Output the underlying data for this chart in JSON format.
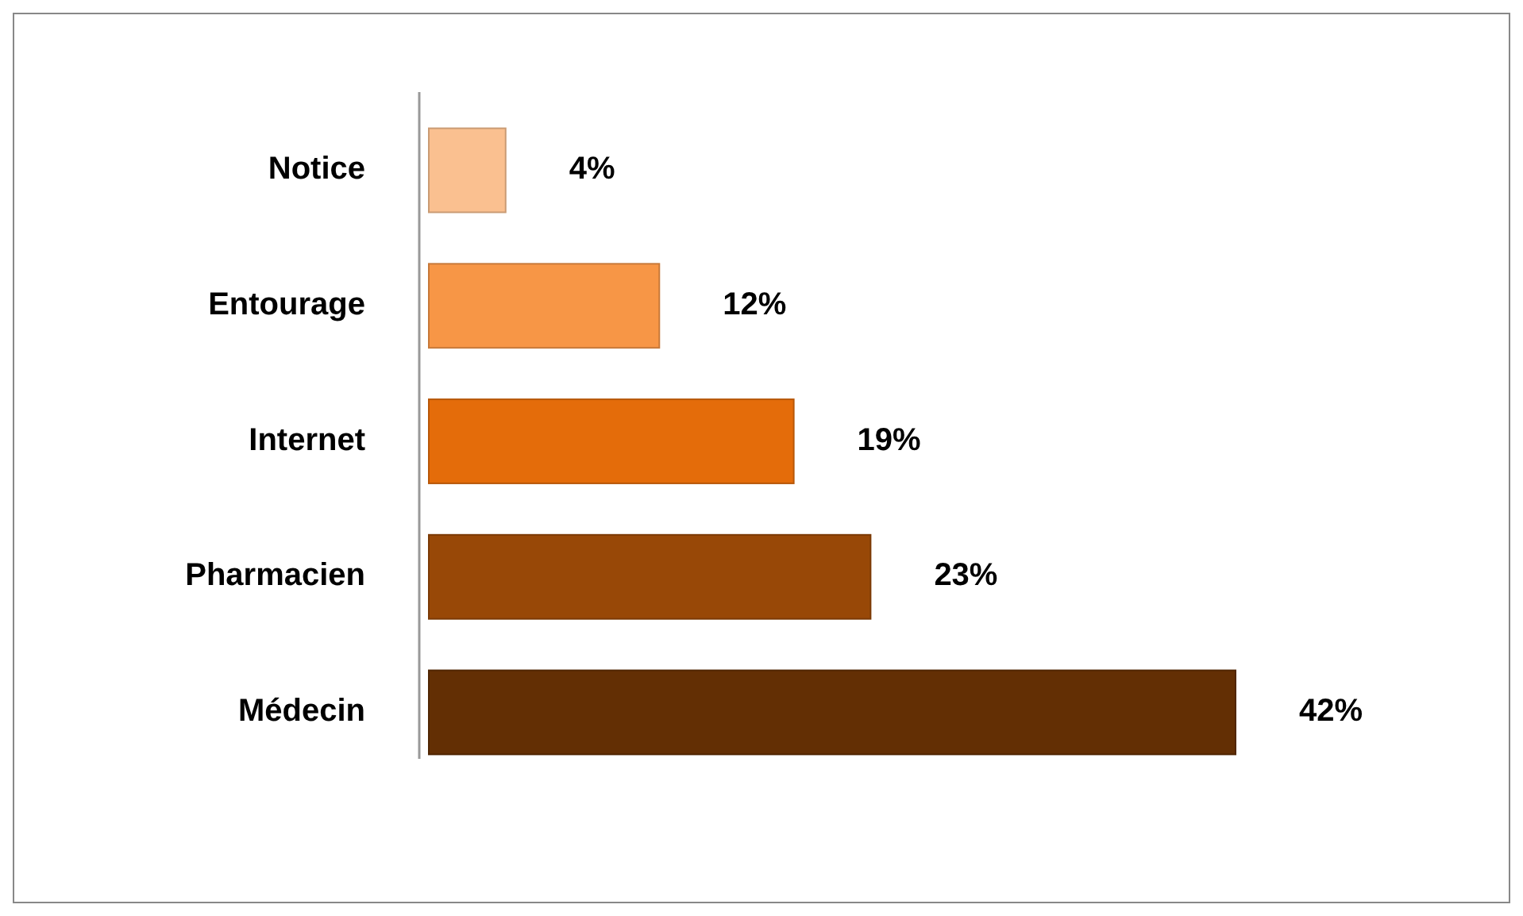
{
  "chart_data": {
    "type": "bar",
    "orientation": "horizontal",
    "categories": [
      "Notice",
      "Entourage",
      "Internet",
      "Pharmacien",
      "Médecin"
    ],
    "values": [
      4,
      12,
      19,
      23,
      42
    ],
    "colors": [
      "#fac090",
      "#f79646",
      "#e46c0a",
      "#984807",
      "#632f04"
    ],
    "value_labels": [
      "4%",
      "12%",
      "19%",
      "23%",
      "42%"
    ]
  }
}
